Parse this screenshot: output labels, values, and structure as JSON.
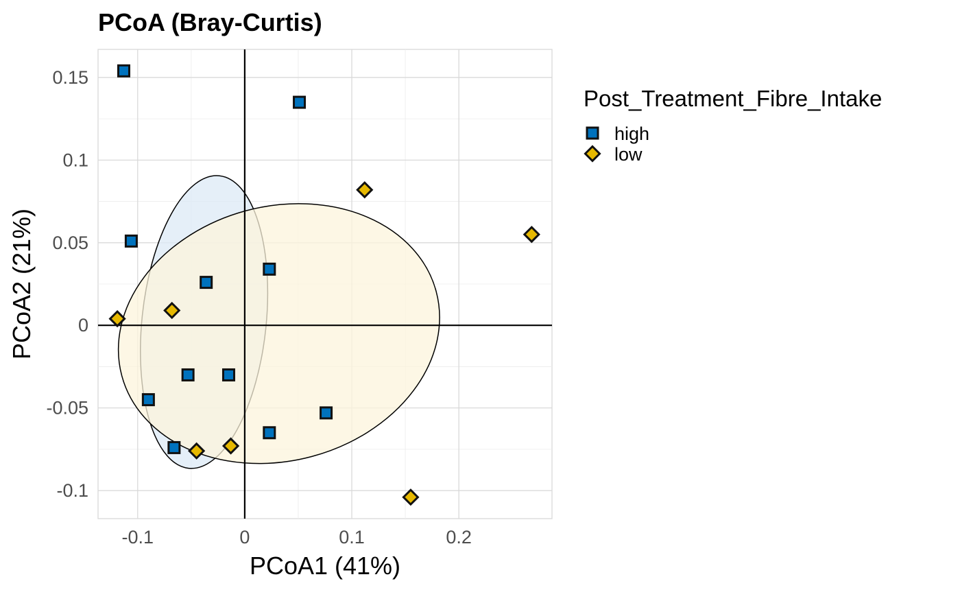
{
  "chart_data": {
    "type": "scatter",
    "title": "PCoA (Bray-Curtis)",
    "xlabel": "PCoA1 (41%)",
    "ylabel": "PCoA2 (21%)",
    "xlim": [
      -0.137,
      0.287
    ],
    "ylim": [
      -0.117,
      0.167
    ],
    "x_ticks": [
      -0.1,
      0,
      0.1,
      0.2
    ],
    "x_tick_labels": [
      "-0.1",
      "0",
      "0.1",
      "0.2"
    ],
    "y_ticks": [
      -0.1,
      -0.05,
      0,
      0.05,
      0.1,
      0.15
    ],
    "y_tick_labels": [
      "-0.1",
      "-0.05",
      "0",
      "0.05",
      "0.1",
      "0.15"
    ],
    "grid": true,
    "reference_lines": {
      "x": 0,
      "y": 0
    },
    "legend": {
      "title": "Post_Treatment_Fibre_Intake",
      "position": "right",
      "entries": [
        {
          "label": "high",
          "shape": "square",
          "color": "#0072BD"
        },
        {
          "label": "low",
          "shape": "diamond",
          "color": "#E6B800"
        }
      ]
    },
    "series": [
      {
        "name": "high",
        "shape": "square",
        "color": "#0072BD",
        "points": [
          {
            "x": -0.113,
            "y": 0.154
          },
          {
            "x": 0.051,
            "y": 0.135
          },
          {
            "x": -0.106,
            "y": 0.051
          },
          {
            "x": 0.023,
            "y": 0.034
          },
          {
            "x": -0.036,
            "y": 0.026
          },
          {
            "x": -0.053,
            "y": -0.03
          },
          {
            "x": -0.015,
            "y": -0.03
          },
          {
            "x": -0.09,
            "y": -0.045
          },
          {
            "x": 0.076,
            "y": -0.053
          },
          {
            "x": 0.023,
            "y": -0.065
          },
          {
            "x": -0.066,
            "y": -0.074
          }
        ],
        "ellipse": {
          "center": [
            -0.038,
            0.002
          ],
          "semi_axes": [
            0.058,
            0.089
          ],
          "rotation_deg": -6,
          "fill": "#dce9f5"
        }
      },
      {
        "name": "low",
        "shape": "diamond",
        "color": "#E6B800",
        "points": [
          {
            "x": 0.112,
            "y": 0.082
          },
          {
            "x": 0.268,
            "y": 0.055
          },
          {
            "x": -0.068,
            "y": 0.009
          },
          {
            "x": -0.119,
            "y": 0.004
          },
          {
            "x": -0.045,
            "y": -0.076
          },
          {
            "x": -0.013,
            "y": -0.073
          },
          {
            "x": 0.155,
            "y": -0.104
          }
        ],
        "ellipse": {
          "center": [
            0.032,
            -0.005
          ],
          "semi_axes": [
            0.152,
            0.077
          ],
          "rotation_deg": 15,
          "fill": "#fcf4dc"
        }
      }
    ]
  }
}
